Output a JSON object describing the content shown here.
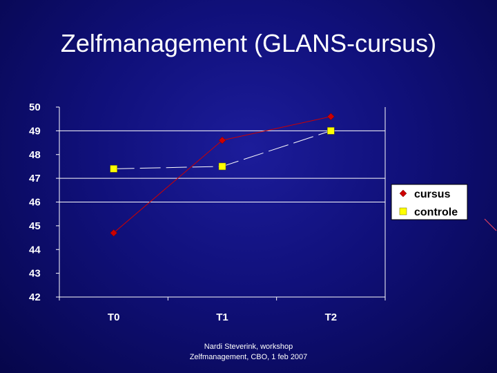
{
  "slide": {
    "title": "Zelfmanagement (GLANS-cursus)",
    "footer_line1": "Nardi Steverink, workshop",
    "footer_line2": "Zelfmanagement, CBO, 1 feb 2007"
  },
  "colors": {
    "cursus": "#cc0000",
    "controle": "#ffff00",
    "gridline": "#ffffff"
  },
  "chart_data": {
    "type": "line",
    "title": "",
    "xlabel": "",
    "ylabel": "",
    "categories": [
      "T0",
      "T1",
      "T2"
    ],
    "ylim": [
      42,
      50
    ],
    "yticks": [
      42,
      43,
      44,
      45,
      46,
      47,
      48,
      49,
      50
    ],
    "yticks_labels": [
      "42",
      "43",
      "44",
      "45",
      "46",
      "47",
      "48",
      "49",
      "50"
    ],
    "gridlines": [
      49,
      47,
      46
    ],
    "legend_position": "right",
    "series": [
      {
        "name": "cursus",
        "marker": "diamond",
        "line": "solid",
        "values": [
          44.7,
          48.6,
          49.6
        ]
      },
      {
        "name": "controle",
        "marker": "square",
        "line": "dashed",
        "values": [
          47.4,
          47.5,
          49.0
        ]
      }
    ]
  }
}
